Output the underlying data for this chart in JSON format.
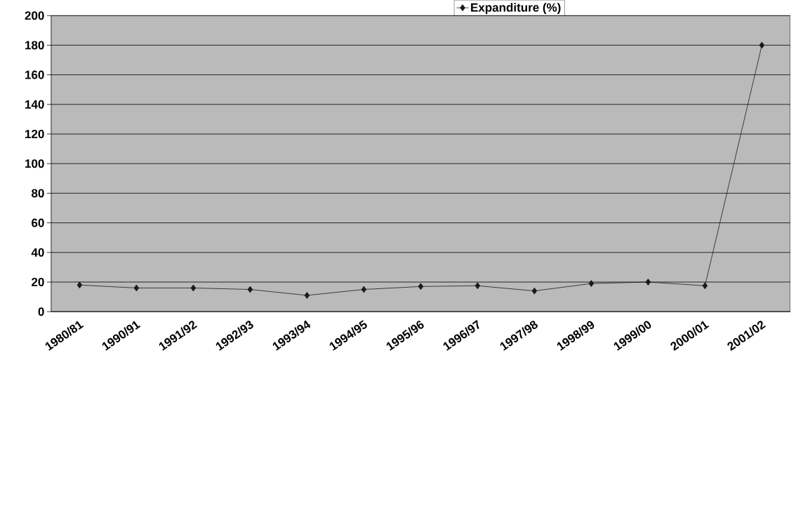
{
  "chart_data": {
    "type": "line",
    "categories": [
      "1980/81",
      "1990/91",
      "1991/92",
      "1992/93",
      "1993/94",
      "1994/95",
      "1995/96",
      "1996/97",
      "1997/98",
      "1998/99",
      "1999/00",
      "2000/01",
      "2001/02"
    ],
    "series": [
      {
        "name": "Expanditure (%)",
        "color": "#1a1a1a",
        "values": [
          18,
          16,
          16,
          15,
          11,
          15,
          17,
          17.5,
          14,
          19,
          20,
          17.5,
          180
        ]
      }
    ],
    "ylim": [
      0,
      200
    ],
    "yticks": [
      0,
      20,
      40,
      60,
      80,
      100,
      120,
      140,
      160,
      180,
      200
    ],
    "grid": "y",
    "legend": "top",
    "marker": "diamond",
    "line_style": "solid"
  }
}
